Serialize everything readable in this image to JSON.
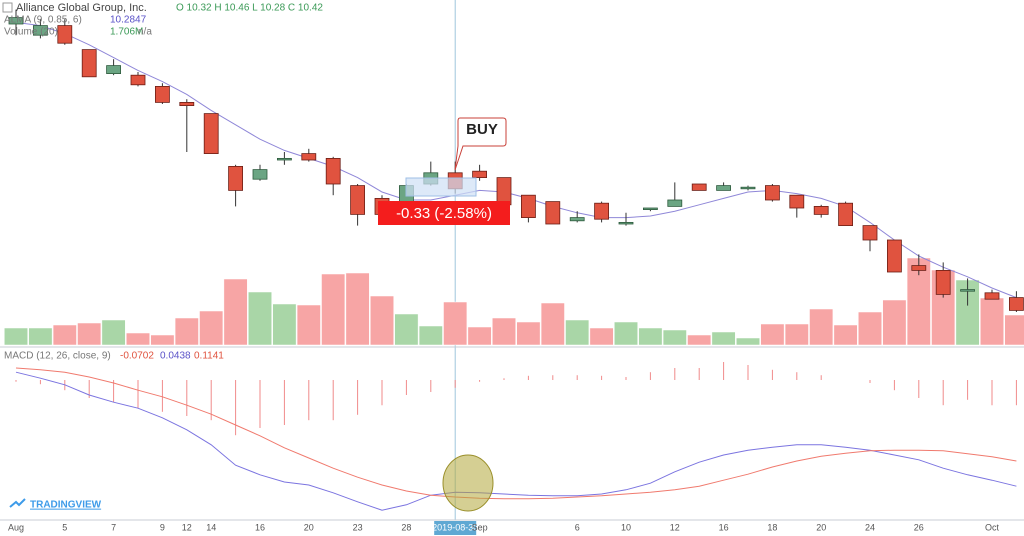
{
  "chart_data": {
    "type": "candlestick",
    "title": "Alliance Global Group, Inc.",
    "ohlc_label": "O 10.32 H 10.46 L 10.28 C 10.42",
    "categories": [
      "Aug",
      null,
      "5",
      null,
      "7",
      null,
      "9",
      "12",
      "14",
      null,
      "16",
      null,
      "20",
      null,
      "23",
      null,
      "28",
      null,
      "2019-08-30",
      "Sep",
      null,
      null,
      null,
      "6",
      null,
      "10",
      null,
      "12",
      null,
      "16",
      null,
      "18",
      null,
      "20",
      null,
      "24",
      null,
      "26",
      null,
      null,
      "Oct",
      null
    ],
    "crosshair": "2019-08-30",
    "open": [
      11.85,
      11.78,
      11.84,
      11.69,
      11.54,
      11.53,
      11.46,
      11.36,
      11.29,
      10.96,
      10.88,
      11.0,
      11.04,
      11.01,
      10.84,
      10.76,
      10.69,
      10.85,
      10.92,
      10.93,
      10.89,
      10.78,
      10.74,
      10.62,
      10.73,
      10.6,
      10.69,
      10.71,
      10.85,
      10.81,
      10.82,
      10.84,
      10.78,
      10.71,
      10.73,
      10.59,
      10.5,
      10.34,
      10.31,
      10.18,
      10.17,
      10.14
    ],
    "high": [
      11.94,
      11.88,
      11.88,
      11.69,
      11.63,
      11.55,
      11.48,
      11.38,
      11.29,
      10.97,
      10.97,
      11.05,
      11.07,
      11.02,
      10.85,
      10.78,
      10.85,
      10.99,
      10.99,
      10.97,
      10.89,
      10.78,
      10.74,
      10.68,
      10.74,
      10.67,
      10.7,
      10.86,
      10.85,
      10.86,
      10.84,
      10.85,
      10.78,
      10.72,
      10.74,
      10.59,
      10.5,
      10.41,
      10.36,
      10.26,
      10.19,
      10.18
    ],
    "low": [
      11.78,
      11.76,
      11.72,
      11.52,
      11.53,
      11.46,
      11.35,
      11.05,
      11.04,
      10.71,
      10.87,
      10.97,
      10.99,
      10.78,
      10.59,
      10.63,
      10.62,
      10.84,
      10.79,
      10.87,
      10.72,
      10.61,
      10.6,
      10.61,
      10.61,
      10.59,
      10.68,
      10.71,
      10.81,
      10.81,
      10.81,
      10.74,
      10.64,
      10.64,
      10.59,
      10.43,
      10.3,
      10.28,
      10.14,
      10.09,
      10.13,
      10.05
    ],
    "close": [
      11.89,
      11.84,
      11.73,
      11.52,
      11.59,
      11.47,
      11.36,
      11.34,
      11.04,
      10.81,
      10.94,
      11.01,
      11.0,
      10.85,
      10.66,
      10.66,
      10.84,
      10.92,
      10.82,
      10.89,
      10.72,
      10.64,
      10.6,
      10.64,
      10.63,
      10.61,
      10.7,
      10.75,
      10.81,
      10.84,
      10.83,
      10.75,
      10.7,
      10.66,
      10.59,
      10.5,
      10.3,
      10.31,
      10.16,
      10.19,
      10.13,
      10.06
    ],
    "up_color": "#6ba583",
    "down_color": "#e0533f",
    "ylim": [
      10,
      12
    ],
    "overlay": {
      "name": "ALMA (9, 0.85, 6)",
      "value_label": "10.2847",
      "color": "#8f87d8",
      "values": [
        11.86,
        11.84,
        11.79,
        11.72,
        11.64,
        11.56,
        11.49,
        11.41,
        11.31,
        11.22,
        11.13,
        11.06,
        11.01,
        10.96,
        10.89,
        10.8,
        10.75,
        10.75,
        10.78,
        10.81,
        10.8,
        10.76,
        10.71,
        10.67,
        10.64,
        10.64,
        10.65,
        10.68,
        10.72,
        10.76,
        10.8,
        10.81,
        10.79,
        10.76,
        10.71,
        10.61,
        10.5,
        10.4,
        10.33,
        10.27,
        10.2,
        10.14
      ]
    },
    "volume": {
      "name": "Volume (20)",
      "value_label": "1.706M",
      "extra_label": "n/a",
      "up_color": "#a9d6a7",
      "down_color": "#f7a5a5",
      "ylim": [
        0,
        8
      ],
      "values": [
        0.68,
        0.68,
        0.8,
        0.88,
        1.0,
        0.48,
        0.4,
        1.08,
        1.36,
        2.64,
        2.12,
        1.64,
        1.6,
        2.84,
        2.88,
        1.96,
        1.24,
        0.76,
        1.72,
        0.72,
        1.08,
        0.92,
        1.68,
        1.0,
        0.68,
        0.92,
        0.68,
        0.6,
        0.4,
        0.52,
        0.28,
        0.84,
        0.84,
        1.44,
        0.8,
        1.32,
        1.8,
        3.48,
        3.0,
        2.6,
        1.88,
        1.2
      ]
    },
    "macd": {
      "name": "MACD (12, 26, close, 9)",
      "value_labels": [
        "-0.0702",
        "0.0438",
        "0.1141"
      ],
      "ylim": [
        -0.24,
        0.06
      ],
      "histogram": {
        "color": "#f08a8a",
        "values": [
          -0.003,
          -0.007,
          -0.017,
          -0.03,
          -0.037,
          -0.047,
          -0.053,
          -0.06,
          -0.067,
          -0.092,
          -0.08,
          -0.075,
          -0.067,
          -0.067,
          -0.058,
          -0.042,
          -0.025,
          -0.02,
          -0.013,
          -0.003,
          0.003,
          0.007,
          0.008,
          0.008,
          0.007,
          0.005,
          0.013,
          0.02,
          0.02,
          0.03,
          0.025,
          0.017,
          0.013,
          0.008,
          0.0,
          -0.005,
          -0.017,
          -0.03,
          -0.042,
          -0.033,
          -0.042,
          -0.042
        ]
      },
      "lines": [
        {
          "color": "#7b74e0",
          "values": [
            0.013,
            0.003,
            -0.008,
            -0.025,
            -0.037,
            -0.047,
            -0.063,
            -0.083,
            -0.108,
            -0.142,
            -0.158,
            -0.17,
            -0.175,
            -0.188,
            -0.203,
            -0.217,
            -0.208,
            -0.192,
            -0.187,
            -0.188,
            -0.19,
            -0.192,
            -0.193,
            -0.193,
            -0.19,
            -0.183,
            -0.172,
            -0.153,
            -0.137,
            -0.125,
            -0.117,
            -0.112,
            -0.108,
            -0.108,
            -0.112,
            -0.117,
            -0.125,
            -0.133,
            -0.147,
            -0.158,
            -0.167,
            -0.177
          ]
        },
        {
          "color": "#f07a6e",
          "values": [
            0.02,
            0.017,
            0.013,
            0.005,
            -0.005,
            -0.017,
            -0.028,
            -0.042,
            -0.057,
            -0.075,
            -0.093,
            -0.113,
            -0.13,
            -0.147,
            -0.162,
            -0.175,
            -0.185,
            -0.192,
            -0.195,
            -0.197,
            -0.198,
            -0.198,
            -0.197,
            -0.195,
            -0.193,
            -0.19,
            -0.187,
            -0.183,
            -0.177,
            -0.167,
            -0.157,
            -0.145,
            -0.135,
            -0.127,
            -0.122,
            -0.118,
            -0.117,
            -0.117,
            -0.118,
            -0.123,
            -0.128,
            -0.135
          ]
        }
      ]
    },
    "annotations": {
      "signal": "BUY",
      "change": "-0.33 (-2.58%)"
    },
    "brand": "TRADINGVIEW"
  }
}
